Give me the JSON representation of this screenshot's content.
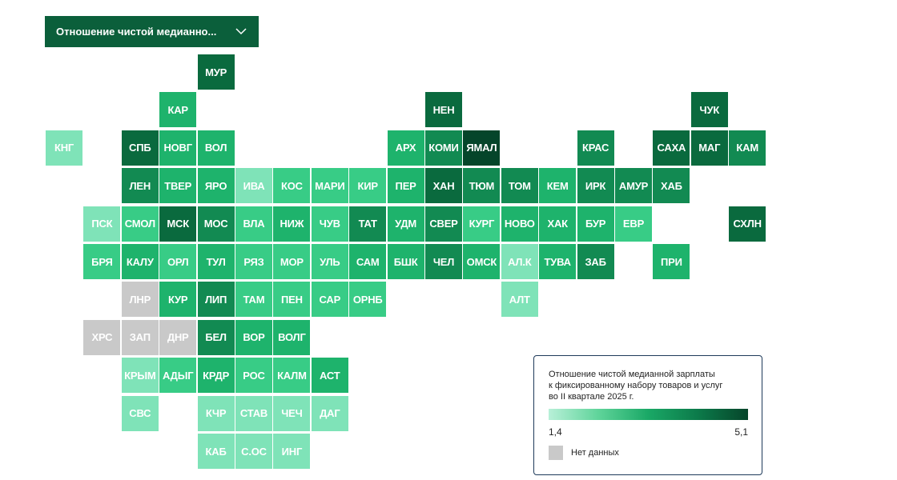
{
  "dropdown": {
    "label": "Отношение чистой медианно..."
  },
  "legend": {
    "title_lines": [
      "Отношение чистой медианной зарплаты",
      "к фиксированному набору товаров и услуг",
      "во II квартале 2025 г."
    ],
    "min_label": "1,4",
    "max_label": "5,1",
    "nodata_label": "Нет данных"
  },
  "colors": {
    "l1": "#7fe3b8",
    "l2": "#38cc86",
    "l3": "#1eb36c",
    "l4": "#128a52",
    "l5": "#0a6a3e",
    "l6": "#05452a",
    "nodata": "#c9c9c9",
    "header": "#0b5f3b"
  },
  "tiles": [
    {
      "code": "МУР",
      "col": 4,
      "row": 0,
      "level": "l5"
    },
    {
      "code": "КАР",
      "col": 3,
      "row": 1,
      "level": "l3"
    },
    {
      "code": "НЕН",
      "col": 10,
      "row": 1,
      "level": "l5"
    },
    {
      "code": "ЧУК",
      "col": 17,
      "row": 1,
      "level": "l5"
    },
    {
      "code": "КНГ",
      "col": 0,
      "row": 2,
      "level": "l1"
    },
    {
      "code": "СПБ",
      "col": 2,
      "row": 2,
      "level": "l5"
    },
    {
      "code": "НОВГ",
      "col": 3,
      "row": 2,
      "level": "l3"
    },
    {
      "code": "ВОЛ",
      "col": 4,
      "row": 2,
      "level": "l3"
    },
    {
      "code": "АРХ",
      "col": 9,
      "row": 2,
      "level": "l3"
    },
    {
      "code": "КОМИ",
      "col": 10,
      "row": 2,
      "level": "l4"
    },
    {
      "code": "ЯМАЛ",
      "col": 11,
      "row": 2,
      "level": "l6"
    },
    {
      "code": "КРАС",
      "col": 14,
      "row": 2,
      "level": "l4"
    },
    {
      "code": "САХА",
      "col": 16,
      "row": 2,
      "level": "l5"
    },
    {
      "code": "МАГ",
      "col": 17,
      "row": 2,
      "level": "l5"
    },
    {
      "code": "КАМ",
      "col": 18,
      "row": 2,
      "level": "l4"
    },
    {
      "code": "ЛЕН",
      "col": 2,
      "row": 3,
      "level": "l4"
    },
    {
      "code": "ТВЕР",
      "col": 3,
      "row": 3,
      "level": "l3"
    },
    {
      "code": "ЯРО",
      "col": 4,
      "row": 3,
      "level": "l3"
    },
    {
      "code": "ИВА",
      "col": 5,
      "row": 3,
      "level": "l1"
    },
    {
      "code": "КОС",
      "col": 6,
      "row": 3,
      "level": "l2"
    },
    {
      "code": "МАРИ",
      "col": 7,
      "row": 3,
      "level": "l2"
    },
    {
      "code": "КИР",
      "col": 8,
      "row": 3,
      "level": "l2"
    },
    {
      "code": "ПЕР",
      "col": 9,
      "row": 3,
      "level": "l3"
    },
    {
      "code": "ХАН",
      "col": 10,
      "row": 3,
      "level": "l5"
    },
    {
      "code": "ТЮМ",
      "col": 11,
      "row": 3,
      "level": "l4"
    },
    {
      "code": "ТОМ",
      "col": 12,
      "row": 3,
      "level": "l4"
    },
    {
      "code": "КЕМ",
      "col": 13,
      "row": 3,
      "level": "l3"
    },
    {
      "code": "ИРК",
      "col": 14,
      "row": 3,
      "level": "l4"
    },
    {
      "code": "АМУР",
      "col": 15,
      "row": 3,
      "level": "l4"
    },
    {
      "code": "ХАБ",
      "col": 16,
      "row": 3,
      "level": "l4"
    },
    {
      "code": "ПСК",
      "col": 1,
      "row": 4,
      "level": "l1"
    },
    {
      "code": "СМОЛ",
      "col": 2,
      "row": 4,
      "level": "l2"
    },
    {
      "code": "МСК",
      "col": 3,
      "row": 4,
      "level": "l5"
    },
    {
      "code": "МОС",
      "col": 4,
      "row": 4,
      "level": "l4"
    },
    {
      "code": "ВЛА",
      "col": 5,
      "row": 4,
      "level": "l2"
    },
    {
      "code": "НИЖ",
      "col": 6,
      "row": 4,
      "level": "l3"
    },
    {
      "code": "ЧУВ",
      "col": 7,
      "row": 4,
      "level": "l2"
    },
    {
      "code": "ТАТ",
      "col": 8,
      "row": 4,
      "level": "l4"
    },
    {
      "code": "УДМ",
      "col": 9,
      "row": 4,
      "level": "l3"
    },
    {
      "code": "СВЕР",
      "col": 10,
      "row": 4,
      "level": "l4"
    },
    {
      "code": "КУРГ",
      "col": 11,
      "row": 4,
      "level": "l2"
    },
    {
      "code": "НОВО",
      "col": 12,
      "row": 4,
      "level": "l3"
    },
    {
      "code": "ХАК",
      "col": 13,
      "row": 4,
      "level": "l3"
    },
    {
      "code": "БУР",
      "col": 14,
      "row": 4,
      "level": "l3"
    },
    {
      "code": "ЕВР",
      "col": 15,
      "row": 4,
      "level": "l2"
    },
    {
      "code": "СХЛН",
      "col": 18,
      "row": 4,
      "level": "l5"
    },
    {
      "code": "БРЯ",
      "col": 1,
      "row": 5,
      "level": "l2"
    },
    {
      "code": "КАЛУ",
      "col": 2,
      "row": 5,
      "level": "l3"
    },
    {
      "code": "ОРЛ",
      "col": 3,
      "row": 5,
      "level": "l2"
    },
    {
      "code": "ТУЛ",
      "col": 4,
      "row": 5,
      "level": "l3"
    },
    {
      "code": "РЯЗ",
      "col": 5,
      "row": 5,
      "level": "l2"
    },
    {
      "code": "МОР",
      "col": 6,
      "row": 5,
      "level": "l2"
    },
    {
      "code": "УЛЬ",
      "col": 7,
      "row": 5,
      "level": "l2"
    },
    {
      "code": "САМ",
      "col": 8,
      "row": 5,
      "level": "l3"
    },
    {
      "code": "БШК",
      "col": 9,
      "row": 5,
      "level": "l3"
    },
    {
      "code": "ЧЕЛ",
      "col": 10,
      "row": 5,
      "level": "l4"
    },
    {
      "code": "ОМСК",
      "col": 11,
      "row": 5,
      "level": "l3"
    },
    {
      "code": "АЛ.К",
      "col": 12,
      "row": 5,
      "level": "l1"
    },
    {
      "code": "ТУВА",
      "col": 13,
      "row": 5,
      "level": "l3"
    },
    {
      "code": "ЗАБ",
      "col": 14,
      "row": 5,
      "level": "l4"
    },
    {
      "code": "ПРИ",
      "col": 16,
      "row": 5,
      "level": "l3"
    },
    {
      "code": "ЛНР",
      "col": 2,
      "row": 6,
      "level": "nodata"
    },
    {
      "code": "КУР",
      "col": 3,
      "row": 6,
      "level": "l3"
    },
    {
      "code": "ЛИП",
      "col": 4,
      "row": 6,
      "level": "l4"
    },
    {
      "code": "ТАМ",
      "col": 5,
      "row": 6,
      "level": "l2"
    },
    {
      "code": "ПЕН",
      "col": 6,
      "row": 6,
      "level": "l2"
    },
    {
      "code": "САР",
      "col": 7,
      "row": 6,
      "level": "l2"
    },
    {
      "code": "ОРНБ",
      "col": 8,
      "row": 6,
      "level": "l2"
    },
    {
      "code": "АЛТ",
      "col": 12,
      "row": 6,
      "level": "l1"
    },
    {
      "code": "ХРС",
      "col": 1,
      "row": 7,
      "level": "nodata"
    },
    {
      "code": "ЗАП",
      "col": 2,
      "row": 7,
      "level": "nodata"
    },
    {
      "code": "ДНР",
      "col": 3,
      "row": 7,
      "level": "nodata"
    },
    {
      "code": "БЕЛ",
      "col": 4,
      "row": 7,
      "level": "l4"
    },
    {
      "code": "ВОР",
      "col": 5,
      "row": 7,
      "level": "l3"
    },
    {
      "code": "ВОЛГ",
      "col": 6,
      "row": 7,
      "level": "l3"
    },
    {
      "code": "КРЫМ",
      "col": 2,
      "row": 8,
      "level": "l1"
    },
    {
      "code": "АДЫГ",
      "col": 3,
      "row": 8,
      "level": "l2"
    },
    {
      "code": "КРДР",
      "col": 4,
      "row": 8,
      "level": "l3"
    },
    {
      "code": "РОС",
      "col": 5,
      "row": 8,
      "level": "l2"
    },
    {
      "code": "КАЛМ",
      "col": 6,
      "row": 8,
      "level": "l2"
    },
    {
      "code": "АСТ",
      "col": 7,
      "row": 8,
      "level": "l3"
    },
    {
      "code": "СВС",
      "col": 2,
      "row": 9,
      "level": "l1"
    },
    {
      "code": "КЧР",
      "col": 4,
      "row": 9,
      "level": "l1"
    },
    {
      "code": "СТАВ",
      "col": 5,
      "row": 9,
      "level": "l1"
    },
    {
      "code": "ЧЕЧ",
      "col": 6,
      "row": 9,
      "level": "l1"
    },
    {
      "code": "ДАГ",
      "col": 7,
      "row": 9,
      "level": "l1"
    },
    {
      "code": "КАБ",
      "col": 4,
      "row": 10,
      "level": "l1"
    },
    {
      "code": "С.ОС",
      "col": 5,
      "row": 10,
      "level": "l1"
    },
    {
      "code": "ИНГ",
      "col": 6,
      "row": 10,
      "level": "l1"
    }
  ]
}
